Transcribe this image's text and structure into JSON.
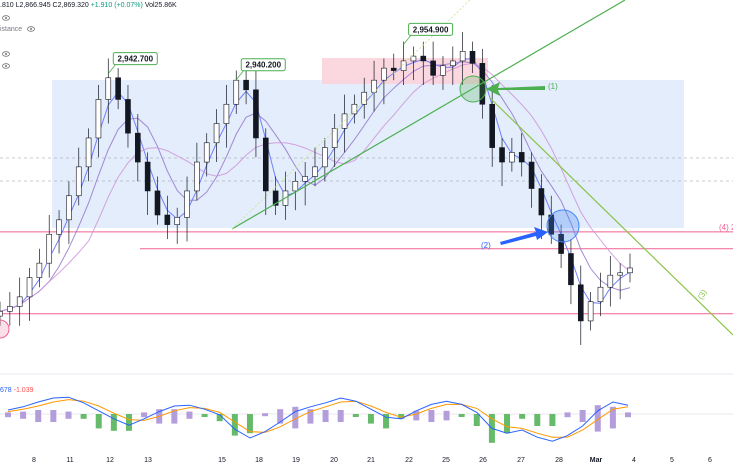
{
  "header": {
    "ohlc_line": ".810  L2,866.945  C2,869.320",
    "change": "+1.910 (+0.07%)",
    "volume": "Vol25.86K",
    "indicator_row_1": "istance",
    "macd_values": [
      "678",
      "-1.039"
    ]
  },
  "price_tags": [
    "2,942.700",
    "2,940.200",
    "2,954.900"
  ],
  "annotations": {
    "arrow_1": "(1)",
    "arrow_2": "(2)",
    "line_3": "(3)",
    "line_4": "(4) 2"
  },
  "colors": {
    "bullish": "#089981",
    "candle": "#131722",
    "trendline": "#4caf50",
    "support": "#f06292",
    "zone": "#e3edfb",
    "supply": "#fbd3dc",
    "ma_fast": "#5b6cff",
    "ma_mid": "#9575cd",
    "ma_slow": "#ce93d8",
    "macd": "#2962ff",
    "signal": "#ff9800",
    "hist_pos": "#b39ddb",
    "hist_neg": "#66bb6a"
  },
  "chart_data": {
    "type": "line",
    "x_ticks": [
      "8",
      "11",
      "12",
      "13",
      "15",
      "18",
      "19",
      "20",
      "21",
      "22",
      "25",
      "26",
      "27",
      "28",
      "Mar",
      "4",
      "5",
      "6"
    ],
    "close": [
      2844,
      2846,
      2850,
      2858,
      2864,
      2876,
      2882,
      2892,
      2904,
      2916,
      2932,
      2941,
      2932,
      2918,
      2906,
      2894,
      2884,
      2880,
      2883,
      2894,
      2906,
      2914,
      2922,
      2930,
      2940,
      2936,
      2916,
      2894,
      2888,
      2894,
      2898,
      2900,
      2904,
      2912,
      2920,
      2926,
      2930,
      2935,
      2940,
      2945,
      2944,
      2948,
      2950,
      2948,
      2942,
      2946,
      2948,
      2952,
      2947,
      2930,
      2912,
      2906,
      2910,
      2906,
      2895,
      2884,
      2876,
      2868,
      2855,
      2840,
      2848,
      2854,
      2859,
      2860,
      2862
    ],
    "tags": [
      {
        "label": "2,942.700",
        "x_index": 11,
        "value": 2942.7
      },
      {
        "label": "2,940.200",
        "x_index": 24,
        "value": 2940.2
      },
      {
        "label": "2,954.900",
        "x_index": 41,
        "value": 2954.9
      }
    ],
    "levels": [
      {
        "label": "(4) 2",
        "value": 2877
      },
      {
        "value": 2870
      },
      {
        "value": 2843
      }
    ],
    "macd": [
      0.5,
      0.9,
      1.5,
      2.0,
      2.1,
      1.4,
      0.4,
      -0.6,
      -1.4,
      -0.6,
      0.3,
      1.0,
      1.1,
      0.6,
      -0.1,
      -1.9,
      -3.0,
      -2.2,
      -1.0,
      0.3,
      0.9,
      1.4,
      2.0,
      1.6,
      0.6,
      -0.4,
      -0.6,
      0.4,
      1.2,
      1.6,
      1.2,
      0.2,
      -1.8,
      -2.4,
      -2.0,
      -2.9,
      -3.4,
      -2.7,
      -1.5,
      0.4,
      1.5,
      1.1
    ],
    "signal": [
      0.3,
      0.6,
      1.0,
      1.5,
      1.8,
      1.6,
      1.0,
      0.1,
      -0.7,
      -0.8,
      -0.3,
      0.4,
      0.8,
      0.7,
      0.2,
      -1.0,
      -2.2,
      -2.3,
      -1.6,
      -0.6,
      0.3,
      0.9,
      1.5,
      1.6,
      1.0,
      0.2,
      -0.4,
      0.0,
      0.7,
      1.2,
      1.2,
      0.7,
      -0.6,
      -1.6,
      -1.8,
      -2.4,
      -2.9,
      -2.9,
      -2.0,
      -0.7,
      0.6,
      0.9
    ]
  }
}
